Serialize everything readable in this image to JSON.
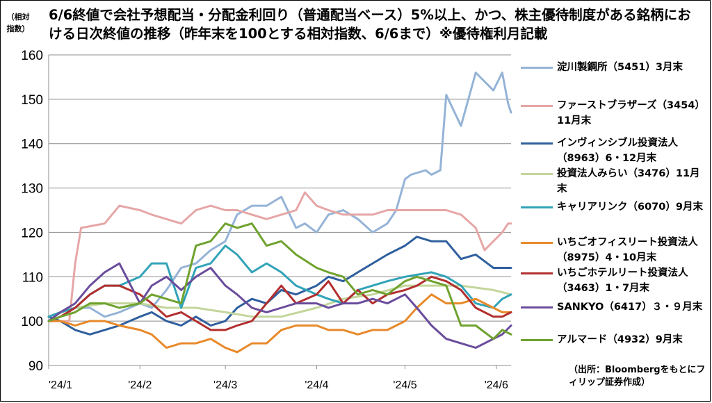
{
  "title": "6/6終値で会社予想配当・分配金利回り（普通配当ベース）5%以上、かつ、株主優待制度がある銘柄における日次終値の推移（昨年末を100とする相対指数、6/6まで）※優待権利月記載",
  "y_axis_label": "（相対指数）",
  "source": "（出所：Bloombergをもとにフィリップ証券作成）",
  "chart_data": {
    "type": "line",
    "title": "6/6終値で会社予想配当・分配金利回り（普通配当ベース）5%以上、かつ、株主優待制度がある銘柄における日次終値の推移（昨年末を100とする相対指数、6/6まで）※優待権利月記載",
    "ylabel": "（相対指数）",
    "xlabel": "",
    "ylim": [
      90,
      160
    ],
    "yticks": [
      90,
      100,
      110,
      120,
      130,
      140,
      150,
      160
    ],
    "x_tick_labels": [
      "'24/1",
      "'24/2",
      "'24/3",
      "'24/4",
      "'24/5",
      "'24/6"
    ],
    "x_range": [
      "2024-01-01",
      "2024-06-06"
    ],
    "x_tick_dates": [
      "2024-01-01",
      "2024-02-01",
      "2024-03-01",
      "2024-04-01",
      "2024-05-01",
      "2024-06-01"
    ],
    "grid": "horizontal",
    "legend_position": "right",
    "series": [
      {
        "name": "淀川製鋼所（5451）3月末",
        "color": "#95B3D7",
        "x": [
          "2024-01-01",
          "2024-01-05",
          "2024-01-10",
          "2024-01-15",
          "2024-01-20",
          "2024-01-25",
          "2024-02-01",
          "2024-02-05",
          "2024-02-10",
          "2024-02-15",
          "2024-02-20",
          "2024-02-25",
          "2024-03-01",
          "2024-03-05",
          "2024-03-10",
          "2024-03-15",
          "2024-03-20",
          "2024-03-25",
          "2024-03-28",
          "2024-04-01",
          "2024-04-05",
          "2024-04-10",
          "2024-04-15",
          "2024-04-20",
          "2024-04-25",
          "2024-04-28",
          "2024-05-01",
          "2024-05-03",
          "2024-05-08",
          "2024-05-10",
          "2024-05-13",
          "2024-05-15",
          "2024-05-20",
          "2024-05-25",
          "2024-05-31",
          "2024-06-03",
          "2024-06-05",
          "2024-06-06"
        ],
        "values": [
          101,
          102,
          103,
          103,
          101,
          102,
          104,
          103,
          107,
          112,
          113,
          116,
          118,
          124,
          126,
          126,
          128,
          121,
          122,
          120,
          124,
          125,
          123,
          120,
          122,
          125,
          132,
          133,
          134,
          133,
          134,
          151,
          144,
          156,
          152,
          156,
          149,
          147
        ]
      },
      {
        "name": "ファーストブラザーズ（3454）11月末",
        "color": "#E6A6A6",
        "x": [
          "2024-01-01",
          "2024-01-08",
          "2024-01-10",
          "2024-01-12",
          "2024-01-20",
          "2024-01-25",
          "2024-02-01",
          "2024-02-05",
          "2024-02-10",
          "2024-02-15",
          "2024-02-20",
          "2024-02-25",
          "2024-03-01",
          "2024-03-05",
          "2024-03-10",
          "2024-03-15",
          "2024-03-20",
          "2024-03-25",
          "2024-03-28",
          "2024-04-01",
          "2024-04-05",
          "2024-04-10",
          "2024-04-15",
          "2024-04-20",
          "2024-04-25",
          "2024-05-01",
          "2024-05-10",
          "2024-05-15",
          "2024-05-20",
          "2024-05-25",
          "2024-05-28",
          "2024-05-31",
          "2024-06-03",
          "2024-06-05",
          "2024-06-06"
        ],
        "values": [
          100,
          100,
          113,
          121,
          122,
          126,
          125,
          124,
          123,
          122,
          125,
          126,
          125,
          125,
          124,
          123,
          124,
          125,
          129,
          126,
          125,
          124,
          124,
          124,
          125,
          125,
          125,
          125,
          124,
          121,
          116,
          118,
          120,
          122,
          122
        ]
      },
      {
        "name": "インヴィンシブル投資法人（8963）6・12月末",
        "color": "#2F5F9E",
        "x": [
          "2024-01-01",
          "2024-01-05",
          "2024-01-10",
          "2024-01-15",
          "2024-01-20",
          "2024-01-25",
          "2024-02-01",
          "2024-02-05",
          "2024-02-10",
          "2024-02-15",
          "2024-02-20",
          "2024-02-25",
          "2024-03-01",
          "2024-03-05",
          "2024-03-10",
          "2024-03-15",
          "2024-03-20",
          "2024-03-25",
          "2024-04-01",
          "2024-04-05",
          "2024-04-10",
          "2024-04-15",
          "2024-04-20",
          "2024-04-25",
          "2024-05-01",
          "2024-05-05",
          "2024-05-10",
          "2024-05-15",
          "2024-05-20",
          "2024-05-25",
          "2024-05-31",
          "2024-06-03",
          "2024-06-06"
        ],
        "values": [
          101,
          100,
          98,
          97,
          98,
          99,
          101,
          102,
          100,
          99,
          101,
          99,
          100,
          103,
          105,
          104,
          107,
          106,
          108,
          110,
          109,
          111,
          113,
          115,
          117,
          119,
          118,
          118,
          114,
          115,
          112,
          112,
          112
        ]
      },
      {
        "name": "投資法人みらい（3476）11月末",
        "color": "#C3D69B",
        "x": [
          "2024-01-01",
          "2024-01-10",
          "2024-01-20",
          "2024-02-01",
          "2024-02-10",
          "2024-02-20",
          "2024-03-01",
          "2024-03-10",
          "2024-03-20",
          "2024-04-01",
          "2024-04-10",
          "2024-04-20",
          "2024-05-01",
          "2024-05-10",
          "2024-05-20",
          "2024-05-31",
          "2024-06-06"
        ],
        "values": [
          101,
          103,
          104,
          104,
          103,
          103,
          102,
          101,
          101,
          103,
          105,
          106,
          108,
          108,
          108,
          107,
          106
        ]
      },
      {
        "name": "キャリアリンク（6070）9月末",
        "color": "#31A3B8",
        "x": [
          "2024-01-01",
          "2024-01-05",
          "2024-01-10",
          "2024-01-15",
          "2024-01-20",
          "2024-01-25",
          "2024-02-01",
          "2024-02-05",
          "2024-02-10",
          "2024-02-15",
          "2024-02-20",
          "2024-02-25",
          "2024-03-01",
          "2024-03-05",
          "2024-03-10",
          "2024-03-15",
          "2024-03-20",
          "2024-03-25",
          "2024-04-01",
          "2024-04-05",
          "2024-04-10",
          "2024-04-15",
          "2024-04-20",
          "2024-04-25",
          "2024-05-01",
          "2024-05-10",
          "2024-05-15",
          "2024-05-20",
          "2024-05-25",
          "2024-05-31",
          "2024-06-03",
          "2024-06-06"
        ],
        "values": [
          101,
          102,
          103,
          106,
          108,
          108,
          110,
          113,
          113,
          103,
          112,
          113,
          117,
          115,
          111,
          113,
          111,
          108,
          106,
          105,
          104,
          107,
          108,
          109,
          110,
          111,
          110,
          108,
          104,
          103,
          105,
          106
        ]
      },
      {
        "name": "いちごオフィスリート投資法人（8975）4・10月末",
        "color": "#E8892A",
        "x": [
          "2024-01-01",
          "2024-01-05",
          "2024-01-10",
          "2024-01-15",
          "2024-01-20",
          "2024-01-25",
          "2024-02-01",
          "2024-02-05",
          "2024-02-10",
          "2024-02-15",
          "2024-02-20",
          "2024-02-25",
          "2024-03-01",
          "2024-03-05",
          "2024-03-10",
          "2024-03-15",
          "2024-03-20",
          "2024-03-25",
          "2024-04-01",
          "2024-04-05",
          "2024-04-10",
          "2024-04-15",
          "2024-04-20",
          "2024-04-25",
          "2024-05-01",
          "2024-05-05",
          "2024-05-10",
          "2024-05-15",
          "2024-05-20",
          "2024-05-25",
          "2024-05-31",
          "2024-06-03",
          "2024-06-06"
        ],
        "values": [
          100,
          100,
          99,
          100,
          100,
          99,
          98,
          97,
          94,
          95,
          95,
          96,
          94,
          93,
          95,
          95,
          98,
          99,
          99,
          98,
          98,
          97,
          98,
          98,
          100,
          103,
          106,
          104,
          104,
          105,
          103,
          102,
          102
        ]
      },
      {
        "name": "いちごホテルリート投資法人（3463）1・7月末",
        "color": "#B22E2E",
        "x": [
          "2024-01-01",
          "2024-01-05",
          "2024-01-10",
          "2024-01-15",
          "2024-01-20",
          "2024-01-25",
          "2024-02-01",
          "2024-02-05",
          "2024-02-10",
          "2024-02-15",
          "2024-02-20",
          "2024-02-25",
          "2024-03-01",
          "2024-03-05",
          "2024-03-10",
          "2024-03-15",
          "2024-03-20",
          "2024-03-25",
          "2024-04-01",
          "2024-04-05",
          "2024-04-10",
          "2024-04-15",
          "2024-04-20",
          "2024-04-25",
          "2024-05-01",
          "2024-05-05",
          "2024-05-10",
          "2024-05-15",
          "2024-05-20",
          "2024-05-25",
          "2024-05-31",
          "2024-06-03",
          "2024-06-06"
        ],
        "values": [
          100,
          101,
          103,
          106,
          108,
          108,
          106,
          104,
          101,
          102,
          100,
          98,
          98,
          99,
          100,
          104,
          108,
          104,
          106,
          109,
          104,
          107,
          104,
          106,
          107,
          108,
          110,
          109,
          107,
          103,
          101,
          101,
          102
        ]
      },
      {
        "name": "SANKYO（6417）３・９月末",
        "color": "#6A4C9C",
        "x": [
          "2024-01-01",
          "2024-01-05",
          "2024-01-10",
          "2024-01-15",
          "2024-01-20",
          "2024-01-25",
          "2024-02-01",
          "2024-02-05",
          "2024-02-10",
          "2024-02-15",
          "2024-02-20",
          "2024-02-25",
          "2024-03-01",
          "2024-03-05",
          "2024-03-10",
          "2024-03-15",
          "2024-03-20",
          "2024-03-25",
          "2024-04-01",
          "2024-04-05",
          "2024-04-10",
          "2024-04-15",
          "2024-04-20",
          "2024-04-25",
          "2024-05-01",
          "2024-05-05",
          "2024-05-10",
          "2024-05-15",
          "2024-05-20",
          "2024-05-25",
          "2024-05-31",
          "2024-06-03",
          "2024-06-06"
        ],
        "values": [
          100,
          102,
          104,
          108,
          111,
          113,
          104,
          108,
          110,
          107,
          110,
          112,
          108,
          106,
          103,
          102,
          103,
          104,
          104,
          103,
          104,
          104,
          105,
          104,
          106,
          103,
          99,
          96,
          95,
          94,
          96,
          97,
          99
        ]
      },
      {
        "name": "アルマード（4932）9月末",
        "color": "#6FA22E",
        "x": [
          "2024-01-01",
          "2024-01-05",
          "2024-01-10",
          "2024-01-15",
          "2024-01-20",
          "2024-01-25",
          "2024-02-01",
          "2024-02-05",
          "2024-02-10",
          "2024-02-15",
          "2024-02-20",
          "2024-02-25",
          "2024-03-01",
          "2024-03-05",
          "2024-03-10",
          "2024-03-15",
          "2024-03-20",
          "2024-03-25",
          "2024-04-01",
          "2024-04-05",
          "2024-04-10",
          "2024-04-15",
          "2024-04-20",
          "2024-04-25",
          "2024-05-01",
          "2024-05-05",
          "2024-05-10",
          "2024-05-15",
          "2024-05-20",
          "2024-05-25",
          "2024-05-31",
          "2024-06-03",
          "2024-06-06"
        ],
        "values": [
          100,
          101,
          102,
          104,
          104,
          103,
          104,
          106,
          105,
          104,
          117,
          118,
          122,
          121,
          122,
          117,
          118,
          115,
          112,
          111,
          110,
          106,
          107,
          106,
          109,
          110,
          109,
          108,
          99,
          99,
          96,
          98,
          97
        ]
      }
    ],
    "legend": [
      {
        "label": "淀川製鋼所（5451）3月末",
        "color": "#95B3D7"
      },
      {
        "label": "ファーストブラザーズ（3454）11月末",
        "color": "#E6A6A6"
      },
      {
        "label": "インヴィンシブル投資法人（8963）6・12月末",
        "color": "#2F5F9E"
      },
      {
        "label": "投資法人みらい（3476）11月末",
        "color": "#C3D69B"
      },
      {
        "label": "キャリアリンク（6070）9月末",
        "color": "#31A3B8"
      },
      {
        "label": "いちごオフィスリート投資法人（8975）4・10月末",
        "color": "#E8892A"
      },
      {
        "label": "いちごホテルリート投資法人（3463）1・7月末",
        "color": "#B22E2E"
      },
      {
        "label": "SANKYO（6417）３・９月末",
        "color": "#6A4C9C"
      },
      {
        "label": "アルマード（4932）9月末",
        "color": "#6FA22E"
      }
    ]
  }
}
